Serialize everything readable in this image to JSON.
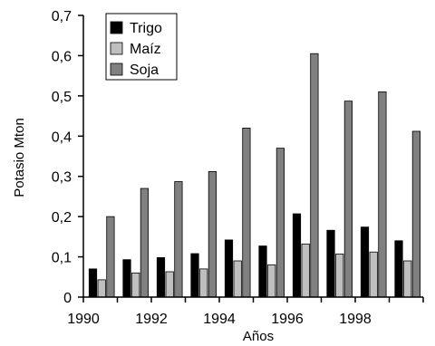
{
  "chart_data": {
    "type": "bar",
    "title": "",
    "xlabel": "Años",
    "ylabel": "Potasio Mton",
    "ylim": [
      0,
      0.7
    ],
    "yticks": [
      "0",
      "0,1",
      "0,2",
      "0,3",
      "0,4",
      "0,5",
      "0,6",
      "0,7"
    ],
    "categories": [
      "1990",
      "1991",
      "1992",
      "1993",
      "1994",
      "1995",
      "1996",
      "1997",
      "1998",
      "1999"
    ],
    "xtick_labels": [
      "1990",
      "",
      "1992",
      "",
      "1994",
      "",
      "1996",
      "",
      "1998",
      ""
    ],
    "legend_position": "top-left",
    "grid": false,
    "series": [
      {
        "name": "Trigo",
        "color": "#000000",
        "values": [
          0.07,
          0.093,
          0.098,
          0.108,
          0.142,
          0.127,
          0.207,
          0.166,
          0.174,
          0.14
        ]
      },
      {
        "name": "Maíz",
        "color": "#bfbfbf",
        "values": [
          0.043,
          0.06,
          0.063,
          0.07,
          0.09,
          0.08,
          0.132,
          0.107,
          0.112,
          0.09
        ]
      },
      {
        "name": "Soja",
        "color": "#808080",
        "values": [
          0.2,
          0.27,
          0.287,
          0.312,
          0.42,
          0.37,
          0.605,
          0.487,
          0.51,
          0.412
        ]
      }
    ]
  }
}
